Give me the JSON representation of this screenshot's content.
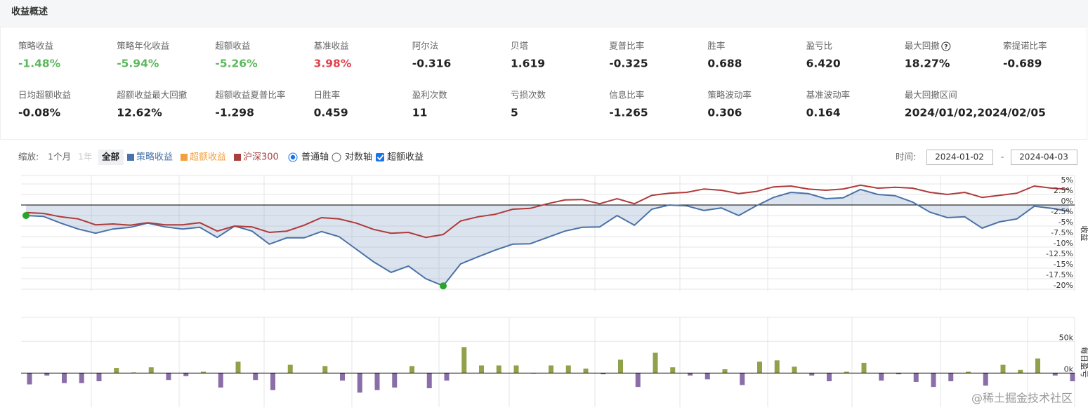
{
  "header": {
    "title": "收益概述"
  },
  "metrics": [
    {
      "label": "策略收益",
      "value": "-1.48%",
      "color": "#5cb85c"
    },
    {
      "label": "策略年化收益",
      "value": "-5.94%",
      "color": "#5cb85c"
    },
    {
      "label": "超额收益",
      "value": "-5.26%",
      "color": "#5cb85c"
    },
    {
      "label": "基准收益",
      "value": "3.98%",
      "color": "#e0444c"
    },
    {
      "label": "阿尔法",
      "value": "-0.316"
    },
    {
      "label": "贝塔",
      "value": "1.619"
    },
    {
      "label": "夏普比率",
      "value": "-0.325"
    },
    {
      "label": "胜率",
      "value": "0.688"
    },
    {
      "label": "盈亏比",
      "value": "6.420"
    },
    {
      "label": "最大回撤",
      "value": "18.27%",
      "help": "?"
    },
    {
      "label": "索提诺比率",
      "value": "-0.689"
    },
    {
      "label": "日均超额收益",
      "value": "-0.08%"
    },
    {
      "label": "超额收益最大回撤",
      "value": "12.62%"
    },
    {
      "label": "超额收益夏普比率",
      "value": "-1.298"
    },
    {
      "label": "日胜率",
      "value": "0.459"
    },
    {
      "label": "盈利次数",
      "value": "11"
    },
    {
      "label": "亏损次数",
      "value": "5"
    },
    {
      "label": "信息比率",
      "value": "-1.265"
    },
    {
      "label": "策略波动率",
      "value": "0.306"
    },
    {
      "label": "基准波动率",
      "value": "0.164"
    },
    {
      "label": "最大回撤区间",
      "value": "2024/01/02,2024/02/05"
    }
  ],
  "controls": {
    "zoom_label": "缩放:",
    "zoom_options": [
      "1个月",
      "1年",
      "全部"
    ],
    "axis_options": [
      "普通轴",
      "对数轴"
    ],
    "excess_toggle": "超额收益",
    "time_label": "时间:",
    "start_date": "2024-01-02",
    "separator": "-",
    "end_date": "2024-04-03"
  },
  "watermark": "@稀土掘金技术社区",
  "chart_data": [
    {
      "type": "line",
      "y_axis_label": "收益",
      "legend": [
        {
          "name": "策略收益",
          "color": "#4a72a8"
        },
        {
          "name": "超额收益",
          "color": "#f0a040"
        },
        {
          "name": "沪深300",
          "color": "#a84040"
        }
      ],
      "series": [
        {
          "color": "#4a72a8",
          "values": [
            -2.5,
            -2.7,
            -4.3,
            -5.7,
            -6.7,
            -5.7,
            -5.3,
            -4.3,
            -5.2,
            -5.7,
            -5.3,
            -7.7,
            -5.0,
            -6.2,
            -9.3,
            -7.8,
            -7.8,
            -6.3,
            -7.5,
            -10.5,
            -13.5,
            -16.0,
            -14.5,
            -17.5,
            -19.2,
            -14.0,
            -12.3,
            -10.7,
            -9.3,
            -9.2,
            -7.7,
            -6.2,
            -5.3,
            -5.2,
            -2.5,
            -4.8,
            -1.0,
            0,
            -0.2,
            -1.3,
            -0.7,
            -2.5,
            -0.2,
            1.8,
            3.0,
            2.7,
            1.5,
            1.7,
            3.7,
            2.5,
            2.2,
            0.7,
            -1.7,
            -3.0,
            -2.8,
            -5.5,
            -4.0,
            -3.3,
            -0.3,
            -0.8,
            -1.5
          ]
        },
        {
          "color": "#b03a3a",
          "values": [
            -1.8,
            -2.0,
            -2.8,
            -3.3,
            -4.7,
            -4.5,
            -4.8,
            -4.2,
            -4.7,
            -4.7,
            -4.2,
            -6.2,
            -5.0,
            -5.2,
            -6.5,
            -6.2,
            -4.8,
            -3.0,
            -3.3,
            -4.3,
            -5.8,
            -6.7,
            -6.5,
            -7.7,
            -7.0,
            -3.8,
            -2.8,
            -2.2,
            -1.0,
            -0.8,
            0.3,
            1.2,
            1.3,
            0.3,
            1.5,
            0.3,
            2.3,
            2.8,
            3.0,
            3.8,
            3.5,
            2.7,
            3.2,
            4.3,
            4.5,
            3.8,
            3.5,
            3.8,
            4.7,
            4.0,
            4.2,
            4.0,
            3.0,
            2.5,
            3.0,
            1.8,
            2.3,
            2.8,
            4.5,
            4.0,
            3.7
          ]
        }
      ],
      "highlight_points": [
        0,
        24
      ],
      "highlight_color": "#2aa52a",
      "ylim": [
        -20.5,
        7
      ],
      "yticks": [
        {
          "value": 5,
          "label": "5%"
        },
        {
          "value": 2.5,
          "label": "2.5%"
        },
        {
          "value": 0,
          "label": "0%"
        },
        {
          "value": -2.5,
          "label": "-2.5%"
        },
        {
          "value": -5,
          "label": "-5%"
        },
        {
          "value": -7.5,
          "label": "-7.5%"
        },
        {
          "value": -10,
          "label": "-10%"
        },
        {
          "value": -12.5,
          "label": "-12.5%"
        },
        {
          "value": -15,
          "label": "-15%"
        },
        {
          "value": -17.5,
          "label": "-17.5%"
        },
        {
          "value": -20,
          "label": "-20%"
        }
      ],
      "grid": true
    },
    {
      "type": "bar",
      "y_axis_label": "每日盈亏",
      "positive_color": "#8fa14a",
      "negative_color": "#8a6ea8",
      "values": [
        -18000,
        -4000,
        -16000,
        -16000,
        -13000,
        8000,
        1000,
        9000,
        -11000,
        -5000,
        2000,
        -23000,
        18000,
        -11000,
        -27000,
        13000,
        0,
        11000,
        -12000,
        -31000,
        -27000,
        -23000,
        11000,
        -24000,
        -12000,
        41000,
        12000,
        12000,
        12000,
        -1000,
        12000,
        12000,
        7000,
        -2000,
        21000,
        -22000,
        32000,
        9000,
        -4000,
        -10000,
        6000,
        -19000,
        18000,
        20000,
        10000,
        -4000,
        -13000,
        2000,
        16000,
        -12000,
        -2000,
        -14000,
        -22000,
        -13000,
        2000,
        -20000,
        13000,
        5000,
        23000,
        -4000,
        -13000
      ],
      "ylim": [
        -54000,
        88000
      ],
      "yticks": [
        {
          "value": 0,
          "label": "0k"
        },
        {
          "value": 50000,
          "label": "50k"
        }
      ],
      "grid": true
    }
  ]
}
